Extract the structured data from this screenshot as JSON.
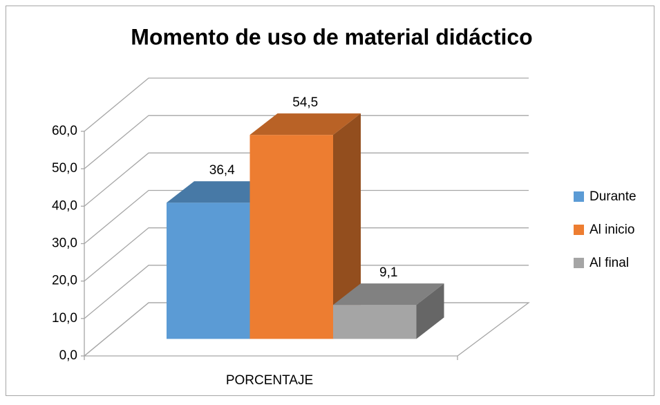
{
  "chart_data": {
    "type": "bar3d",
    "title": "Momento de uso de material didáctico",
    "categories": [
      "PORCENTAJE"
    ],
    "series": [
      {
        "name": "Durante",
        "color": "#5b9bd5",
        "values": [
          36.4
        ],
        "value_labels": [
          "36,4"
        ]
      },
      {
        "name": "Al inicio",
        "color": "#ed7d31",
        "values": [
          54.5
        ],
        "value_labels": [
          "54,5"
        ]
      },
      {
        "name": "Al final",
        "color": "#a5a5a5",
        "values": [
          9.1
        ],
        "value_labels": [
          "9,1"
        ]
      }
    ],
    "ylim": [
      0,
      60
    ],
    "yticks": [
      {
        "value": 0,
        "label": "0,0"
      },
      {
        "value": 10,
        "label": "10,0"
      },
      {
        "value": 20,
        "label": "20,0"
      },
      {
        "value": 30,
        "label": "30,0"
      },
      {
        "value": 40,
        "label": "40,0"
      },
      {
        "value": 50,
        "label": "50,0"
      },
      {
        "value": 60,
        "label": "60,0"
      }
    ],
    "grid": true,
    "legend": "right"
  }
}
